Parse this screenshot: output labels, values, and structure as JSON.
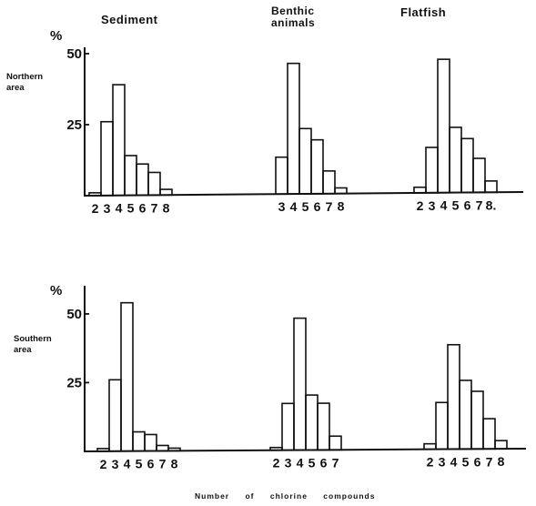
{
  "figure": {
    "column_titles": [
      "Sediment",
      "Benthic\nanimals",
      "Flatfish"
    ],
    "row_labels": [
      "Northern\narea",
      "Southern\narea"
    ],
    "y_unit": "%",
    "xlabel": "Number  of  chlorine  compounds",
    "colors": {
      "ink": "#111111",
      "background": "#ffffff"
    }
  },
  "chart_data": [
    {
      "type": "bar",
      "panel": "Northern area / Sediment",
      "categories": [
        "2",
        "3",
        "4",
        "5",
        "6",
        "7",
        "8"
      ],
      "values": [
        1,
        26,
        39,
        14,
        11,
        8,
        2
      ],
      "ylim": [
        0,
        55
      ],
      "yticks": [
        25,
        50
      ],
      "ytick_labels": [
        "25",
        "50"
      ],
      "xtick_labels": [
        "2",
        "3",
        "4",
        "5",
        "6",
        "7",
        "8"
      ],
      "grid": false
    },
    {
      "type": "bar",
      "panel": "Northern area / Benthic animals",
      "categories": [
        "3",
        "4",
        "5",
        "6",
        "7",
        "8"
      ],
      "values": [
        13,
        46,
        23,
        19,
        8,
        2
      ],
      "ylim": [
        0,
        55
      ],
      "yticks": [],
      "ytick_labels": [],
      "xtick_labels": [
        "3",
        "4",
        "5",
        "6",
        "7",
        "8"
      ],
      "grid": false
    },
    {
      "type": "bar",
      "panel": "Northern area / Flatfish",
      "categories": [
        "2",
        "3",
        "4",
        "5",
        "6",
        "7",
        "8"
      ],
      "values": [
        2,
        16,
        47,
        23,
        19,
        12,
        4
      ],
      "ylim": [
        0,
        55
      ],
      "yticks": [],
      "ytick_labels": [],
      "xtick_labels": [
        "2",
        "3",
        "4",
        "5",
        "6",
        "7",
        "8."
      ],
      "grid": false
    },
    {
      "type": "bar",
      "panel": "Southern area / Sediment",
      "categories": [
        "2",
        "3",
        "4",
        "5",
        "6",
        "7",
        "8"
      ],
      "values": [
        1,
        26,
        54,
        7,
        6,
        2,
        1
      ],
      "ylim": [
        0,
        55
      ],
      "yticks": [
        25,
        50
      ],
      "ytick_labels": [
        "25",
        "50"
      ],
      "xtick_labels": [
        "2",
        "3",
        "4",
        "5",
        "6",
        "7",
        "8"
      ],
      "grid": false
    },
    {
      "type": "bar",
      "panel": "Southern area / Benthic animals",
      "categories": [
        "2",
        "3",
        "4",
        "5",
        "6",
        "7"
      ],
      "values": [
        1,
        17,
        48,
        20,
        17,
        5
      ],
      "ylim": [
        0,
        55
      ],
      "yticks": [],
      "ytick_labels": [],
      "xtick_labels": [
        "2",
        "3",
        "4",
        "5",
        "6",
        "7"
      ],
      "grid": false
    },
    {
      "type": "bar",
      "panel": "Southern area / Flatfish",
      "categories": [
        "2",
        "3",
        "4",
        "5",
        "6",
        "7",
        "8"
      ],
      "values": [
        2,
        17,
        38,
        25,
        21,
        11,
        3
      ],
      "ylim": [
        0,
        55
      ],
      "yticks": [],
      "ytick_labels": [],
      "xtick_labels": [
        "2",
        "3",
        "4",
        "5",
        "6",
        "7",
        "8"
      ],
      "grid": false
    }
  ]
}
